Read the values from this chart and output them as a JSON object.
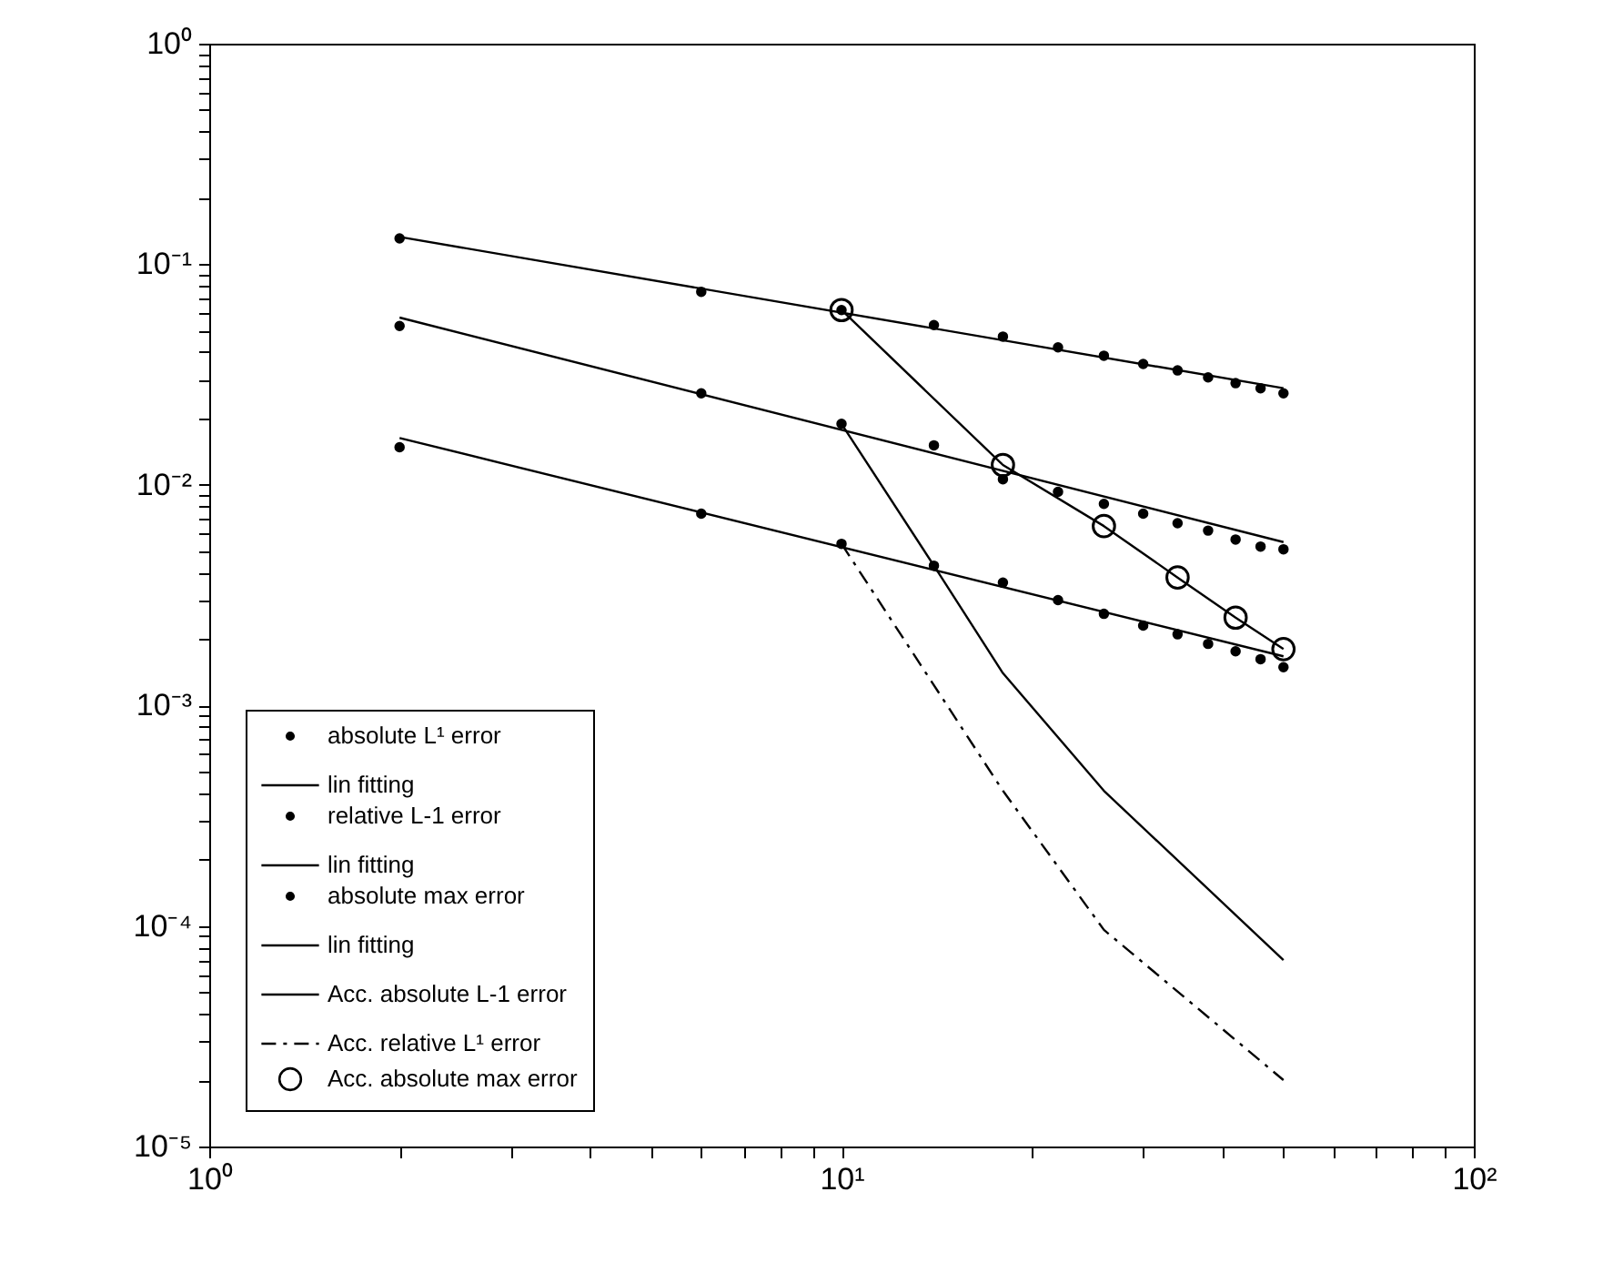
{
  "chart_data": {
    "type": "line",
    "xlim": [
      1,
      100
    ],
    "ylim": [
      1e-05,
      1
    ],
    "log": "xy",
    "grid": false,
    "legend": "bottom left",
    "xticks": [
      {
        "value": 1,
        "label": "10⁰"
      },
      {
        "value": 2,
        "label": null
      },
      {
        "value": 3,
        "label": null
      },
      {
        "value": 4,
        "label": null
      },
      {
        "value": 5,
        "label": null
      },
      {
        "value": 6,
        "label": null
      },
      {
        "value": 7,
        "label": null
      },
      {
        "value": 8,
        "label": null
      },
      {
        "value": 9,
        "label": null
      },
      {
        "value": 10,
        "label": "10¹"
      },
      {
        "value": 20,
        "label": null
      },
      {
        "value": 30,
        "label": null
      },
      {
        "value": 40,
        "label": null
      },
      {
        "value": 50,
        "label": null
      },
      {
        "value": 60,
        "label": null
      },
      {
        "value": 70,
        "label": null
      },
      {
        "value": 80,
        "label": null
      },
      {
        "value": 90,
        "label": null
      },
      {
        "value": 100,
        "label": "10²"
      }
    ],
    "yticks": [
      {
        "value": 1e-05,
        "label": "10⁻⁵"
      },
      {
        "value": 2e-05,
        "label": null
      },
      {
        "value": 3e-05,
        "label": null
      },
      {
        "value": 4e-05,
        "label": null
      },
      {
        "value": 5e-05,
        "label": null
      },
      {
        "value": 6e-05,
        "label": null
      },
      {
        "value": 7e-05,
        "label": null
      },
      {
        "value": 8e-05,
        "label": null
      },
      {
        "value": 9e-05,
        "label": null
      },
      {
        "value": 0.0001,
        "label": "10⁻⁴"
      },
      {
        "value": 0.0002,
        "label": null
      },
      {
        "value": 0.0003,
        "label": null
      },
      {
        "value": 0.0004,
        "label": null
      },
      {
        "value": 0.0005,
        "label": null
      },
      {
        "value": 0.0006,
        "label": null
      },
      {
        "value": 0.0007,
        "label": null
      },
      {
        "value": 0.0008,
        "label": null
      },
      {
        "value": 0.0009,
        "label": null
      },
      {
        "value": 0.001,
        "label": "10⁻³"
      },
      {
        "value": 0.002,
        "label": null
      },
      {
        "value": 0.003,
        "label": null
      },
      {
        "value": 0.004,
        "label": null
      },
      {
        "value": 0.005,
        "label": null
      },
      {
        "value": 0.006,
        "label": null
      },
      {
        "value": 0.007,
        "label": null
      },
      {
        "value": 0.008,
        "label": null
      },
      {
        "value": 0.009,
        "label": null
      },
      {
        "value": 0.01,
        "label": "10⁻²"
      },
      {
        "value": 0.02,
        "label": null
      },
      {
        "value": 0.03,
        "label": null
      },
      {
        "value": 0.04,
        "label": null
      },
      {
        "value": 0.05,
        "label": null
      },
      {
        "value": 0.06,
        "label": null
      },
      {
        "value": 0.07,
        "label": null
      },
      {
        "value": 0.08,
        "label": null
      },
      {
        "value": 0.09,
        "label": null
      },
      {
        "value": 0.1,
        "label": "10⁻¹"
      },
      {
        "value": 0.2,
        "label": null
      },
      {
        "value": 0.3,
        "label": null
      },
      {
        "value": 0.4,
        "label": null
      },
      {
        "value": 0.5,
        "label": null
      },
      {
        "value": 0.6,
        "label": null
      },
      {
        "value": 0.7,
        "label": null
      },
      {
        "value": 0.8,
        "label": null
      },
      {
        "value": 0.9,
        "label": null
      },
      {
        "value": 1,
        "label": "10⁰"
      }
    ],
    "series": [
      {
        "name": "absolute L¹ error",
        "type": "scatter",
        "marker": "circle",
        "color": "#000000",
        "x": [
          2,
          6,
          10,
          14,
          18,
          22,
          26,
          30,
          34,
          38,
          42,
          46,
          50
        ],
        "values": [
          0.131,
          0.075,
          0.062,
          0.053,
          0.047,
          0.042,
          0.0385,
          0.0353,
          0.033,
          0.0307,
          0.0289,
          0.0274,
          0.026
        ]
      },
      {
        "name": "lin fitting",
        "marker": "none",
        "line_style": "solid",
        "color": "#000000",
        "x": [
          2,
          50
        ],
        "values": [
          0.133,
          0.0274
        ]
      },
      {
        "name": "relative L-1 error",
        "type": "scatter",
        "marker": "circle",
        "color": "#000000",
        "x": [
          2,
          6,
          10,
          14,
          18,
          22,
          26,
          30,
          34,
          38,
          42,
          46,
          50
        ],
        "values": [
          0.0525,
          0.026,
          0.0189,
          0.0151,
          0.0106,
          0.0093,
          0.0082,
          0.0074,
          0.0067,
          0.0062,
          0.00565,
          0.00525,
          0.0051
        ]
      },
      {
        "name": "lin fitting",
        "marker": "none",
        "line_style": "solid",
        "color": "#000000",
        "x": [
          2,
          50
        ],
        "values": [
          0.0573,
          0.0055
        ]
      },
      {
        "name": "absolute max error",
        "type": "scatter",
        "marker": "circle",
        "color": "#000000",
        "x": [
          2,
          6,
          10,
          14,
          18,
          22,
          26,
          30,
          34,
          38,
          42,
          46,
          50
        ],
        "values": [
          0.0148,
          0.0074,
          0.0054,
          0.0043,
          0.0036,
          0.003,
          0.0026,
          0.0023,
          0.0021,
          0.0019,
          0.00176,
          0.00162,
          0.00149
        ]
      },
      {
        "name": "lin fitting",
        "marker": "none",
        "line_style": "solid",
        "color": "#000000",
        "x": [
          2,
          50
        ],
        "values": [
          0.0163,
          0.00167
        ]
      },
      {
        "name": "Acc. absolute L-1 error",
        "marker": "none",
        "line_style": "solid",
        "color": "#000000",
        "x": [
          10,
          14,
          18,
          26,
          50
        ],
        "values": [
          0.0189,
          0.0043,
          0.0014,
          0.00041,
          7e-05
        ]
      },
      {
        "name": "Acc. relative L¹ error",
        "marker": "none",
        "line_style": "dashdot",
        "color": "#000000",
        "x": [
          10,
          18,
          26,
          50
        ],
        "values": [
          0.0054,
          0.00041,
          9.6e-05,
          2e-05
        ]
      },
      {
        "name": "Acc. absolute max error",
        "marker": "circle",
        "line_style": "solid",
        "color": "#000000",
        "x": [
          10,
          18,
          26,
          34,
          42,
          50
        ],
        "values": [
          0.062,
          0.0123,
          0.0065,
          0.0038,
          0.0025,
          0.0018
        ]
      }
    ]
  }
}
